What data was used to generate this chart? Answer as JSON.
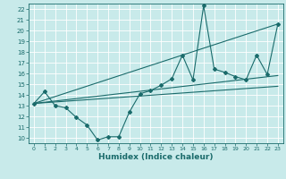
{
  "title": "",
  "xlabel": "Humidex (Indice chaleur)",
  "bg_color": "#c8eaea",
  "line_color": "#1a6b6b",
  "xlim": [
    -0.5,
    23.5
  ],
  "ylim": [
    9.5,
    22.5
  ],
  "xticks": [
    0,
    1,
    2,
    3,
    4,
    5,
    6,
    7,
    8,
    9,
    10,
    11,
    12,
    13,
    14,
    15,
    16,
    17,
    18,
    19,
    20,
    21,
    22,
    23
  ],
  "yticks": [
    10,
    11,
    12,
    13,
    14,
    15,
    16,
    17,
    18,
    19,
    20,
    21,
    22
  ],
  "main_x": [
    0,
    1,
    2,
    3,
    4,
    5,
    6,
    7,
    8,
    9,
    10,
    11,
    12,
    13,
    14,
    15,
    16,
    17,
    18,
    19,
    20,
    21,
    22,
    23
  ],
  "main_y": [
    13.2,
    14.3,
    13.0,
    12.8,
    11.9,
    11.2,
    9.8,
    10.1,
    10.1,
    12.4,
    14.1,
    14.4,
    14.9,
    15.5,
    17.7,
    15.4,
    22.3,
    16.4,
    16.1,
    15.7,
    15.4,
    17.7,
    15.9,
    20.6
  ],
  "trend1_x": [
    0,
    23
  ],
  "trend1_y": [
    13.2,
    20.6
  ],
  "trend2_x": [
    0,
    23
  ],
  "trend2_y": [
    13.2,
    15.8
  ],
  "trend3_x": [
    0,
    23
  ],
  "trend3_y": [
    13.2,
    14.8
  ]
}
